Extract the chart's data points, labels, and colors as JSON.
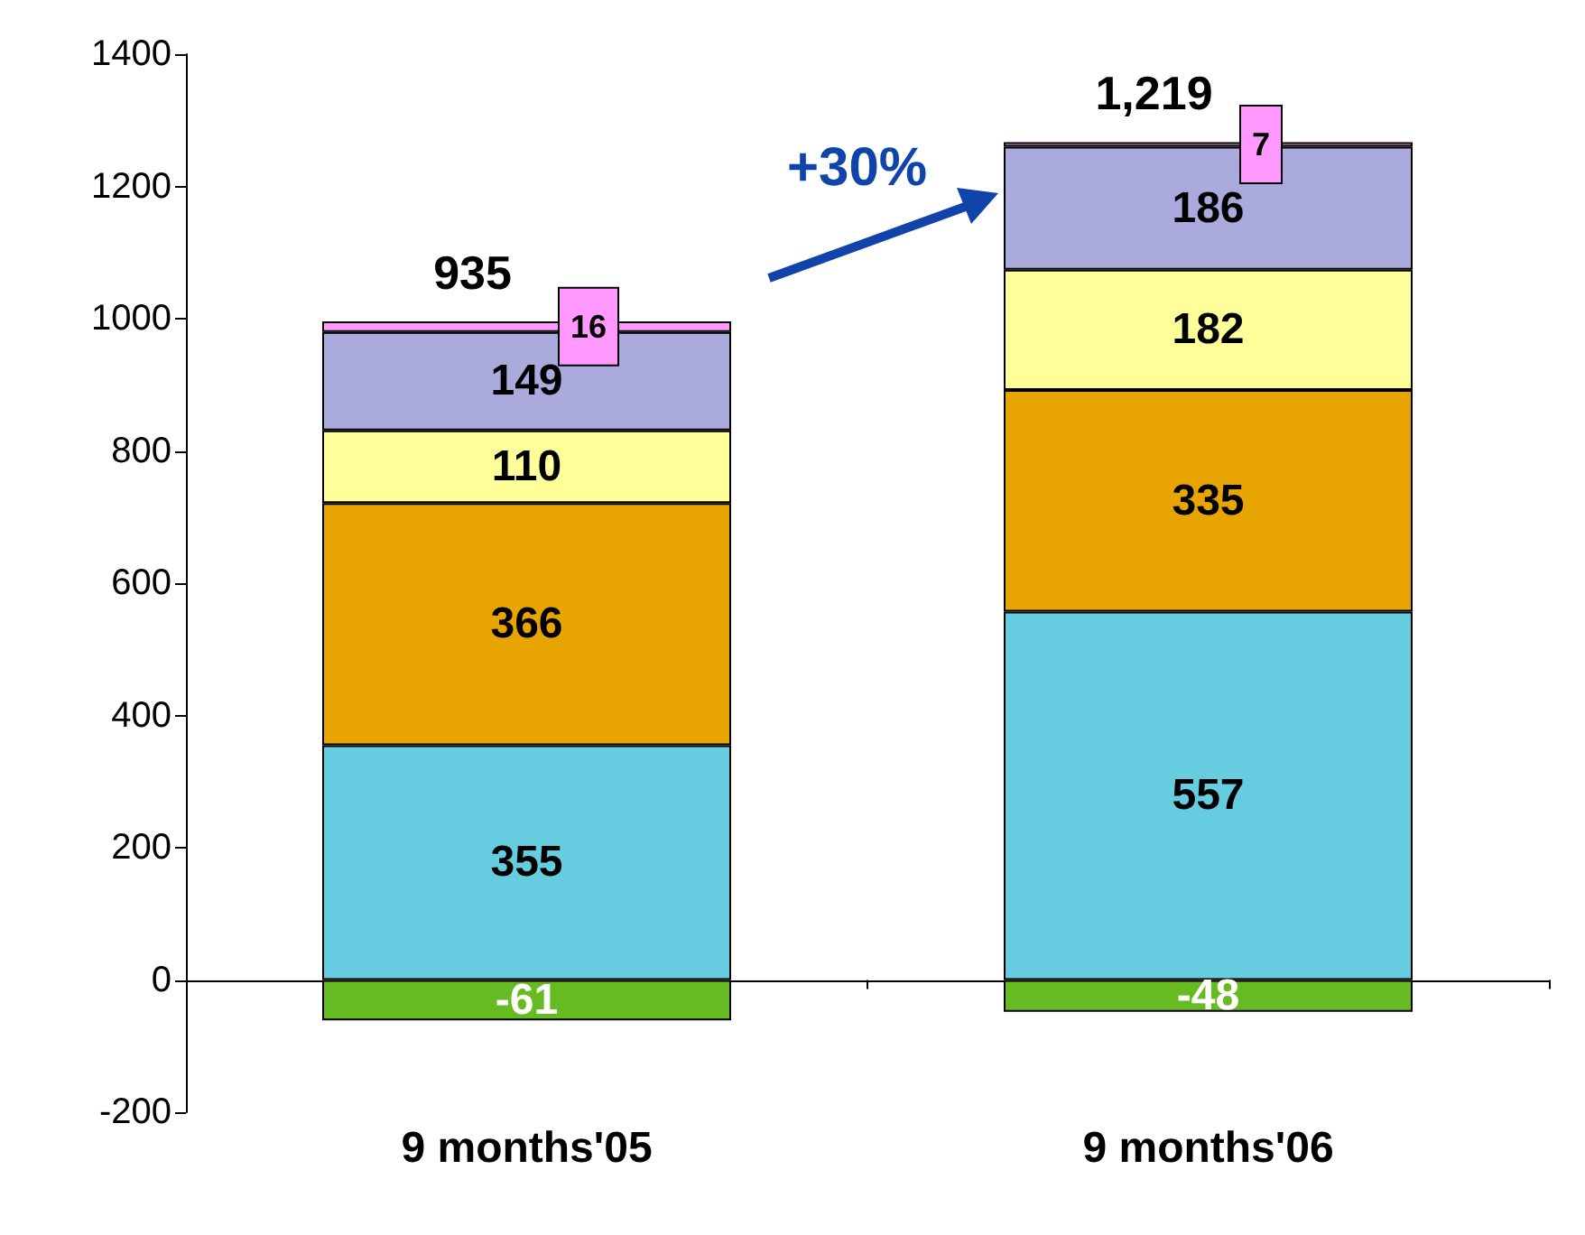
{
  "chart_data": {
    "type": "bar",
    "stacked": true,
    "categories": [
      "9 months'05",
      "9 months'06"
    ],
    "series": [
      {
        "color": "#66bb22",
        "values": [
          -61,
          -48
        ]
      },
      {
        "color": "#66cce0",
        "values": [
          355,
          557
        ]
      },
      {
        "color": "#e8a400",
        "values": [
          366,
          335
        ]
      },
      {
        "color": "#ffff99",
        "values": [
          110,
          182
        ]
      },
      {
        "color": "#aaaadd",
        "values": [
          149,
          186
        ]
      },
      {
        "color": "#ff99ff",
        "values": [
          16,
          7
        ]
      }
    ],
    "ylim": [
      -200,
      1400
    ],
    "yticks": [
      -200,
      0,
      200,
      400,
      600,
      800,
      1000,
      1200,
      1400
    ],
    "data_labels": true,
    "totals": [
      "935",
      "1,219"
    ],
    "annotations": [
      "+30%"
    ]
  }
}
